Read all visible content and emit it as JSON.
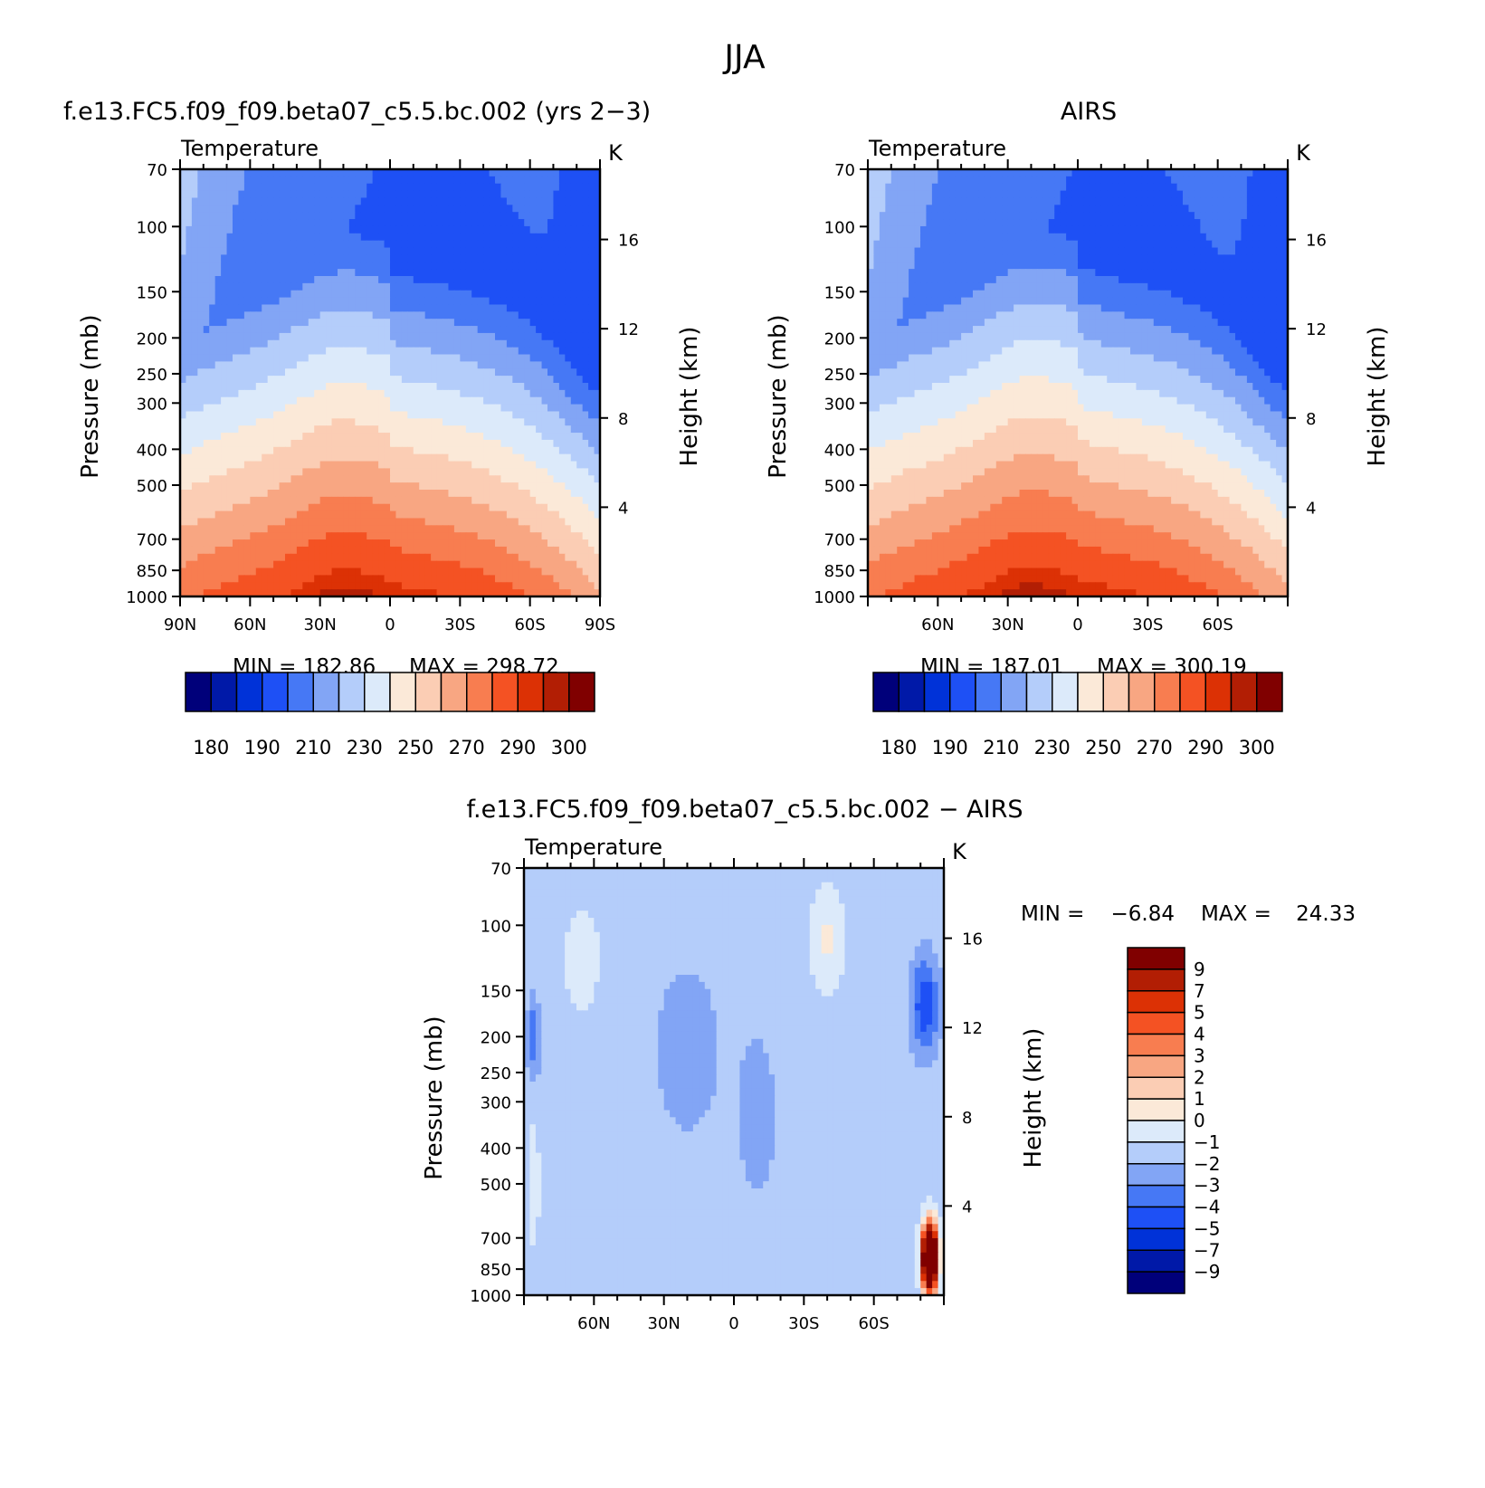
{
  "figure": {
    "title": "JJA"
  },
  "chart_data": [
    {
      "type": "heatmap",
      "panel": "model",
      "title": "f.e13.FC5.f09_f09.beta07_c5.5.bc.002 (yrs 2−3)",
      "left_string": "Temperature",
      "right_string": "K",
      "ylabel": "Pressure (mb)",
      "ylabel_right": "Height (km)",
      "x_ticks": [
        "90N",
        "60N",
        "30N",
        "0",
        "30S",
        "60S",
        "90S"
      ],
      "x_ticks_values": [
        90,
        60,
        30,
        0,
        -30,
        -60,
        -90
      ],
      "y_ticks": [
        "70",
        "100",
        "150",
        "200",
        "250",
        "300",
        "400",
        "500",
        "700",
        "850",
        "1000"
      ],
      "y_ticks_right": [
        "16",
        "12",
        "8",
        "4"
      ],
      "ylim": [
        1000,
        70
      ],
      "yscale": "log",
      "x_range": [
        "90N",
        "90S"
      ],
      "min_label": "MIN = 182.86",
      "max_label": "MAX = 298.72",
      "min": 182.86,
      "max": 298.72,
      "levels": [
        180,
        185,
        190,
        200,
        210,
        220,
        230,
        240,
        250,
        260,
        270,
        280,
        290,
        295,
        300
      ],
      "colorbar_ticks": [
        "180",
        "190",
        "210",
        "230",
        "250",
        "270",
        "290",
        "300"
      ],
      "colorbar_orientation": "horizontal"
    },
    {
      "type": "heatmap",
      "panel": "obs",
      "title": "AIRS",
      "left_string": "Temperature",
      "right_string": "K",
      "ylabel": "Pressure (mb)",
      "ylabel_right": "Height (km)",
      "x_ticks": [
        "60N",
        "30N",
        "0",
        "30S",
        "60S"
      ],
      "x_ticks_values": [
        60,
        30,
        0,
        -30,
        -60
      ],
      "y_ticks": [
        "70",
        "100",
        "150",
        "200",
        "250",
        "300",
        "400",
        "500",
        "700",
        "850",
        "1000"
      ],
      "y_ticks_right": [
        "16",
        "12",
        "8",
        "4"
      ],
      "ylim": [
        1000,
        70
      ],
      "yscale": "log",
      "min_label": "MIN = 187.01",
      "max_label": "MAX = 300.19",
      "min": 187.01,
      "max": 300.19,
      "levels": [
        180,
        185,
        190,
        200,
        210,
        220,
        230,
        240,
        250,
        260,
        270,
        280,
        290,
        295,
        300
      ],
      "colorbar_ticks": [
        "180",
        "190",
        "210",
        "230",
        "250",
        "270",
        "290",
        "300"
      ],
      "colorbar_orientation": "horizontal"
    },
    {
      "type": "heatmap",
      "panel": "difference",
      "title": "f.e13.FC5.f09_f09.beta07_c5.5.bc.002 − AIRS",
      "left_string": "Temperature",
      "right_string": "K",
      "ylabel": "Pressure (mb)",
      "ylabel_right": "Height (km)",
      "x_ticks": [
        "60N",
        "30N",
        "0",
        "30S",
        "60S"
      ],
      "x_ticks_values": [
        60,
        30,
        0,
        -30,
        -60
      ],
      "y_ticks": [
        "70",
        "100",
        "150",
        "200",
        "250",
        "300",
        "400",
        "500",
        "700",
        "850",
        "1000"
      ],
      "y_ticks_right": [
        "16",
        "12",
        "8",
        "4"
      ],
      "ylim": [
        1000,
        70
      ],
      "yscale": "log",
      "min_label": "MIN =",
      "min_value": "−6.84",
      "max_label": "MAX =",
      "max_value": "24.33",
      "min": -6.84,
      "max": 24.33,
      "levels": [
        -9,
        -7,
        -5,
        -4,
        -3,
        -2,
        -1,
        0,
        1,
        2,
        3,
        4,
        5,
        7,
        9
      ],
      "colorbar_ticks": [
        "9",
        "7",
        "5",
        "4",
        "3",
        "2",
        "1",
        "0",
        "−1",
        "−2",
        "−3",
        "−4",
        "−5",
        "−7",
        "−9"
      ],
      "colorbar_orientation": "vertical"
    }
  ],
  "colors": {
    "palette_16": [
      "#00007a",
      "#0019a8",
      "#0032d8",
      "#1e50f5",
      "#4678f5",
      "#82a5f5",
      "#b4cdfa",
      "#dceafa",
      "#fbe9d8",
      "#fbcdb4",
      "#f8a682",
      "#f87d50",
      "#f45223",
      "#dc3105",
      "#b21e04",
      "#800000"
    ],
    "axis": "#000000"
  }
}
